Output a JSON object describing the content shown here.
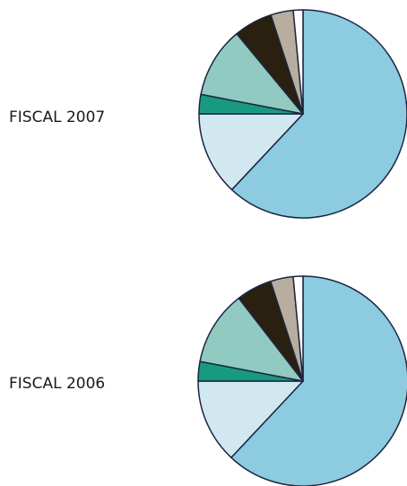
{
  "chart_data": [
    {
      "type": "pie",
      "title": "FISCAL 2007",
      "values": [
        62,
        13,
        3,
        11,
        6,
        3.5,
        1.5
      ],
      "colors": [
        "#8ccbe0",
        "#d2e8f1",
        "#179a80",
        "#90cac1",
        "#2a2010",
        "#b8ae9f",
        "#ffffff"
      ]
    },
    {
      "type": "pie",
      "title": "FISCAL 2006",
      "values": [
        62,
        13,
        3,
        11.5,
        5.5,
        3.5,
        1.5
      ],
      "colors": [
        "#8ccbe0",
        "#d2e8f1",
        "#179a80",
        "#90cac1",
        "#2a2010",
        "#b8ae9f",
        "#ffffff"
      ]
    }
  ]
}
